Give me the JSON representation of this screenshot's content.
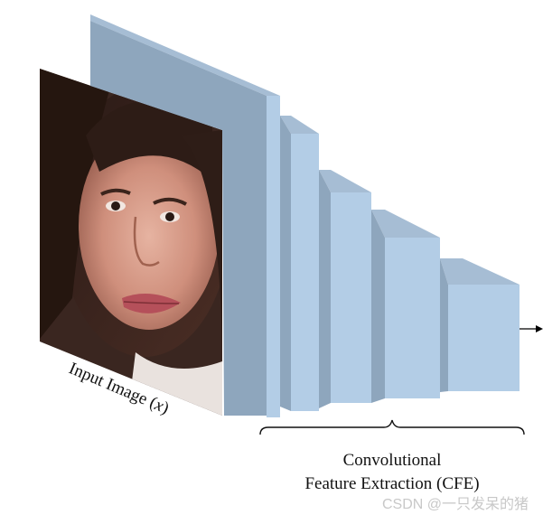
{
  "diagram": {
    "input_label": "Input Image (x)",
    "input_label_prefix": "Input Image (",
    "input_label_var": "x",
    "input_label_suffix": ")",
    "section_label_line1": "Convolutional",
    "section_label_line2": "Feature Extraction (CFE)",
    "watermark": "CSDN @一只发呆的猪",
    "input_image": "face-photo",
    "layer_count": 6,
    "colors": {
      "layer_front": "#b3cde6",
      "layer_top": "#a6bdd4",
      "layer_side": "#8ea6bd",
      "arrow": "#000000",
      "text": "#111111",
      "watermark": "#c8c8c8"
    }
  }
}
